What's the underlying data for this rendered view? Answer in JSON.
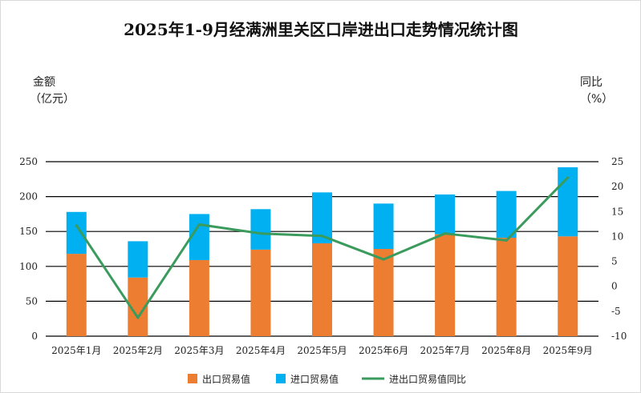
{
  "chart_data": {
    "type": "bar",
    "title": "2025年1-9月经满洲里关区口岸进出口走势情况统计图",
    "ylabel_left": [
      "金额",
      "（亿元）"
    ],
    "ylabel_right": [
      "同比",
      "（%）"
    ],
    "categories": [
      "2025年1月",
      "2025年2月",
      "2025年3月",
      "2025年4月",
      "2025年5月",
      "2025年6月",
      "2025年7月",
      "2025年8月",
      "2025年9月"
    ],
    "series": [
      {
        "name": "出口贸易值",
        "kind": "bar-stack",
        "color": "#ED7D31",
        "values": [
          118,
          84,
          109,
          124,
          133,
          125,
          146,
          141,
          143
        ]
      },
      {
        "name": "进口贸易值",
        "kind": "bar-stack",
        "color": "#00B0F0",
        "values": [
          60,
          52,
          66,
          58,
          73,
          65,
          57,
          67,
          99
        ]
      },
      {
        "name": "进出口贸易值同比",
        "kind": "line",
        "axis": "right",
        "color": "#3A9B5C",
        "values": [
          12.2,
          -6.3,
          12.4,
          10.6,
          10.1,
          5.4,
          10.6,
          9.2,
          21.8
        ]
      }
    ],
    "ylim_left": [
      0,
      250
    ],
    "yticks_left": [
      "0",
      "50",
      "100",
      "150",
      "200",
      "250"
    ],
    "ylim_right": [
      -10,
      25
    ],
    "yticks_right": [
      "-10",
      "-5",
      "0",
      "5",
      "10",
      "15",
      "20",
      "25"
    ],
    "grid": true,
    "legend": "bottom"
  }
}
